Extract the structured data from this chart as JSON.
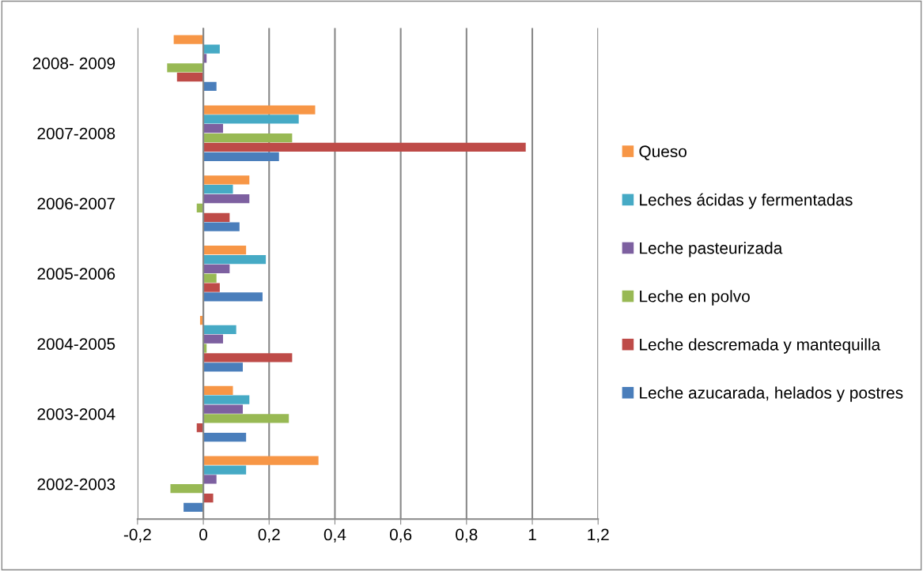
{
  "chart_data": {
    "type": "bar",
    "orientation": "horizontal",
    "categories": [
      "2008- 2009",
      "2007-2008",
      "2006-2007",
      "2005-2006",
      "2004-2005",
      "2003-2004",
      "2002-2003"
    ],
    "series": [
      {
        "name": "Leche azucarada, helados y postres",
        "color": "#4a7ebb",
        "values": [
          0.04,
          0.23,
          0.11,
          0.18,
          0.12,
          0.13,
          -0.06
        ]
      },
      {
        "name": "Leche descremada y mantequilla",
        "color": "#be4b48",
        "values": [
          -0.08,
          0.98,
          0.08,
          0.05,
          0.27,
          -0.02,
          0.03
        ]
      },
      {
        "name": "Leche en polvo",
        "color": "#98b954",
        "values": [
          -0.11,
          0.27,
          -0.02,
          0.04,
          0.01,
          0.26,
          -0.1
        ]
      },
      {
        "name": "Leche pasteurizada",
        "color": "#7d60a0",
        "values": [
          0.01,
          0.06,
          0.14,
          0.08,
          0.06,
          0.12,
          0.04
        ]
      },
      {
        "name": "Leches ácidas y fermentadas",
        "color": "#46aac5",
        "values": [
          0.05,
          0.29,
          0.09,
          0.19,
          0.1,
          0.14,
          0.13
        ]
      },
      {
        "name": "Queso",
        "color": "#f79646",
        "values": [
          -0.09,
          0.34,
          0.14,
          0.13,
          -0.01,
          0.09,
          0.35
        ]
      }
    ],
    "xlim": [
      -0.2,
      1.2
    ],
    "xticks": [
      {
        "value": -0.2,
        "label": "-0,2"
      },
      0,
      {
        "value": 0.2,
        "label": "0,2"
      },
      {
        "value": 0.4,
        "label": "0,4"
      },
      {
        "value": 0.6,
        "label": "0,6"
      },
      {
        "value": 0.8,
        "label": "0,8"
      },
      1,
      {
        "value": 1.2,
        "label": "1,2"
      }
    ],
    "grid": "x",
    "legend": "right"
  }
}
